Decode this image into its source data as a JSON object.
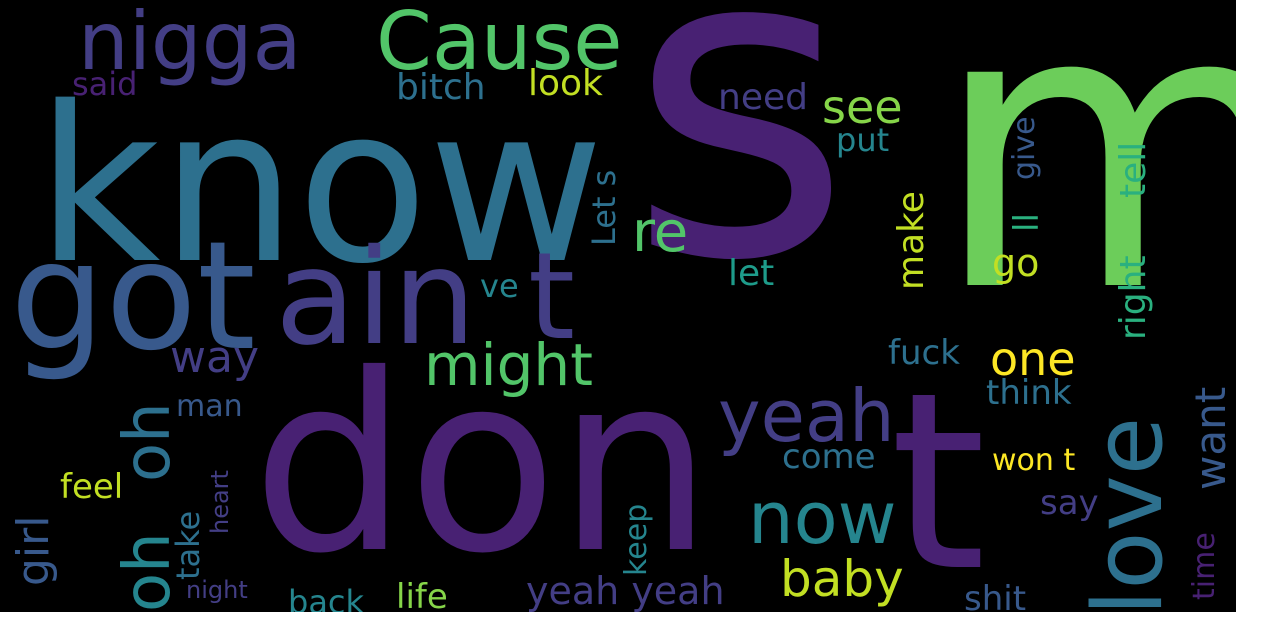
{
  "wordcloud": {
    "background": "#000000",
    "palette": {
      "dark_purple": "#482173",
      "indigo": "#433e85",
      "blue": "#38598c",
      "steel": "#2d708e",
      "teal": "#25858e",
      "cyan_green": "#1e9b8a",
      "green": "#2ab07f",
      "light_green": "#52c569",
      "lime": "#86d549",
      "yellow": "#c2df23",
      "bright_yellow": "#fde725"
    },
    "words": [
      {
        "text": "s",
        "color": "#482173"
      },
      {
        "text": "m",
        "color": "#6ccd5a"
      },
      {
        "text": "know",
        "color": "#2d708e"
      },
      {
        "text": "don",
        "color": "#482173"
      },
      {
        "text": "t",
        "color": "#482173"
      },
      {
        "text": "got",
        "color": "#38598c"
      },
      {
        "text": "ain",
        "color": "#433e85"
      },
      {
        "text": "t",
        "color": "#433e85"
      },
      {
        "text": "nigga",
        "color": "#433e85"
      },
      {
        "text": "Cause",
        "color": "#52c569"
      },
      {
        "text": "love",
        "color": "#2d708e"
      },
      {
        "text": "now",
        "color": "#25858e"
      },
      {
        "text": "yeah",
        "color": "#433e85"
      },
      {
        "text": "oh",
        "color": "#25858e"
      },
      {
        "text": "oh",
        "color": "#2d708e"
      },
      {
        "text": "might",
        "color": "#52c569"
      },
      {
        "text": "baby",
        "color": "#c2df23"
      },
      {
        "text": "re",
        "color": "#52c569"
      },
      {
        "text": "see",
        "color": "#86d549"
      },
      {
        "text": "way",
        "color": "#433e85"
      },
      {
        "text": "one",
        "color": "#fde725"
      },
      {
        "text": "want",
        "color": "#38598c"
      },
      {
        "text": "girl",
        "color": "#38598c"
      },
      {
        "text": "yeah yeah",
        "color": "#433e85"
      },
      {
        "text": "need",
        "color": "#433e85"
      },
      {
        "text": "bitch",
        "color": "#2d708e"
      },
      {
        "text": "look",
        "color": "#c2df23"
      },
      {
        "text": "said",
        "color": "#482173"
      },
      {
        "text": "make",
        "color": "#c2df23"
      },
      {
        "text": "go",
        "color": "#c2df23"
      },
      {
        "text": "right",
        "color": "#2ab07f"
      },
      {
        "text": "tell",
        "color": "#2ab07f"
      },
      {
        "text": "ll",
        "color": "#2ab07f"
      },
      {
        "text": "give",
        "color": "#38598c"
      },
      {
        "text": "let",
        "color": "#1e9b8a"
      },
      {
        "text": "Let s",
        "color": "#2d708e"
      },
      {
        "text": "ve",
        "color": "#25858e"
      },
      {
        "text": "put",
        "color": "#25858e"
      },
      {
        "text": "fuck",
        "color": "#2d708e"
      },
      {
        "text": "think",
        "color": "#2d708e"
      },
      {
        "text": "man",
        "color": "#38598c"
      },
      {
        "text": "come",
        "color": "#2d708e"
      },
      {
        "text": "won t",
        "color": "#fde725"
      },
      {
        "text": "say",
        "color": "#433e85"
      },
      {
        "text": "time",
        "color": "#482173"
      },
      {
        "text": "feel",
        "color": "#c2df23"
      },
      {
        "text": "heart",
        "color": "#433e85"
      },
      {
        "text": "take",
        "color": "#2d708e"
      },
      {
        "text": "keep",
        "color": "#25858e"
      },
      {
        "text": "shit",
        "color": "#38598c"
      },
      {
        "text": "back",
        "color": "#25858e"
      },
      {
        "text": "life",
        "color": "#86d549"
      },
      {
        "text": "night",
        "color": "#433e85"
      }
    ]
  }
}
